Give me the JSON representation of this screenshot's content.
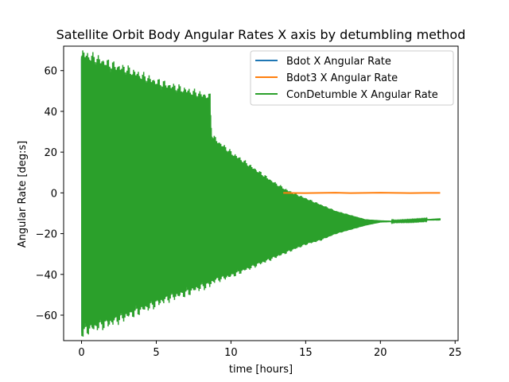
{
  "chart_data": {
    "type": "line",
    "title": "Satellite Orbit Body Angular Rates X axis by detumbling method",
    "xlabel": "time [hours]",
    "ylabel": "Angular Rate [deg:s]",
    "xlim": [
      -1.2,
      25.2
    ],
    "ylim": [
      -72.5,
      72
    ],
    "xticks": [
      0,
      5,
      10,
      15,
      20,
      25
    ],
    "yticks": [
      -60,
      -40,
      -20,
      0,
      20,
      40,
      60
    ],
    "legend_position": "upper-right",
    "series": [
      {
        "name": "Bdot X Angular Rate",
        "color": "#1f77b4",
        "kind": "oscillation_envelope",
        "x": [
          0,
          0.05,
          0.1,
          0.2,
          0.3,
          0.4,
          0.5
        ],
        "upper": [
          66,
          64,
          62,
          58,
          55,
          50,
          45
        ],
        "lower": [
          -66,
          -64,
          -62,
          -60,
          -57,
          -53,
          -48
        ]
      },
      {
        "name": "Bdot3 X Angular Rate",
        "color": "#ff7f0e",
        "kind": "line",
        "x": [
          13.5,
          15,
          16,
          17,
          18,
          19,
          20,
          21,
          22,
          23,
          24
        ],
        "y": [
          0,
          -0.1,
          0,
          0.1,
          -0.1,
          0,
          0.1,
          0,
          -0.1,
          0,
          0
        ]
      },
      {
        "name": "ConDetumble X Angular Rate",
        "color": "#2ca02c",
        "kind": "oscillation_envelope",
        "x": [
          0,
          0.2,
          1,
          2,
          3,
          4,
          5,
          6,
          7,
          8,
          8.6,
          8.7,
          9,
          10,
          11,
          12,
          13,
          14,
          15,
          16,
          17,
          18,
          19,
          20,
          21,
          22,
          23,
          24
        ],
        "upper": [
          67,
          66,
          64,
          61,
          59,
          56,
          53,
          51,
          49,
          47,
          46,
          28,
          25,
          19,
          14,
          9,
          4,
          0,
          -3,
          -6,
          -9,
          -11,
          -13,
          -13.5,
          -13.8,
          -13.5,
          -13,
          -12.5
        ],
        "lower": [
          -67,
          -66,
          -64,
          -62,
          -59,
          -56,
          -53,
          -50,
          -48,
          -45,
          -44,
          -43,
          -42,
          -40,
          -37,
          -34,
          -31,
          -28,
          -25,
          -23,
          -20,
          -18,
          -16,
          -14.5,
          -14.2,
          -14,
          -13.5,
          -13.5
        ]
      }
    ]
  }
}
